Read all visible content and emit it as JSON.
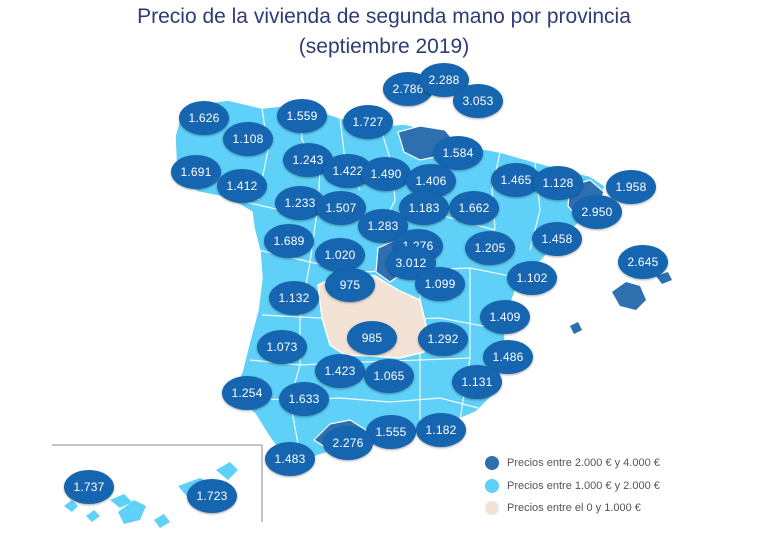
{
  "title": {
    "line1": "Precio de la vivienda de segunda mano por provincia",
    "line2": "(septiembre 2019)"
  },
  "colors": {
    "high": "#2e6fb0",
    "mid": "#5fd0f7",
    "low": "#f3e3d6",
    "badge": "#1565b0",
    "title": "#2e3c73"
  },
  "legend": [
    {
      "label": "Precios entre 2.000 € y 4.000 €",
      "color": "#2e6fb0"
    },
    {
      "label": "Precios entre 1.000 € y 2.000 €",
      "color": "#5fd0f7"
    },
    {
      "label": "Precios entre el 0 y 1.000 €",
      "color": "#f3e3d6"
    }
  ],
  "provinces": [
    {
      "value": "2.786"
    },
    {
      "value": "2.288"
    },
    {
      "value": "3.053"
    },
    {
      "value": "1.626"
    },
    {
      "value": "1.559"
    },
    {
      "value": "1.727"
    },
    {
      "value": "1.108"
    },
    {
      "value": "1.584"
    },
    {
      "value": "1.243"
    },
    {
      "value": "1.691"
    },
    {
      "value": "1.422"
    },
    {
      "value": "1.490"
    },
    {
      "value": "1.406"
    },
    {
      "value": "1.465"
    },
    {
      "value": "1.128"
    },
    {
      "value": "1.958"
    },
    {
      "value": "1.412"
    },
    {
      "value": "1.233"
    },
    {
      "value": "1.507"
    },
    {
      "value": "1.183"
    },
    {
      "value": "1.662"
    },
    {
      "value": "2.950"
    },
    {
      "value": "1.283"
    },
    {
      "value": "1.689"
    },
    {
      "value": "1.020"
    },
    {
      "value": "1.276"
    },
    {
      "value": "1.205"
    },
    {
      "value": "1.458"
    },
    {
      "value": "3.012"
    },
    {
      "value": "2.645"
    },
    {
      "value": "975"
    },
    {
      "value": "1.099"
    },
    {
      "value": "1.102"
    },
    {
      "value": "1.132"
    },
    {
      "value": "1.409"
    },
    {
      "value": "985"
    },
    {
      "value": "1.292"
    },
    {
      "value": "1.073"
    },
    {
      "value": "1.486"
    },
    {
      "value": "1.423"
    },
    {
      "value": "1.065"
    },
    {
      "value": "1.131"
    },
    {
      "value": "1.254"
    },
    {
      "value": "1.633"
    },
    {
      "value": "1.555"
    },
    {
      "value": "1.182"
    },
    {
      "value": "2.276"
    },
    {
      "value": "1.483"
    },
    {
      "value": "1.737"
    },
    {
      "value": "1.723"
    }
  ]
}
